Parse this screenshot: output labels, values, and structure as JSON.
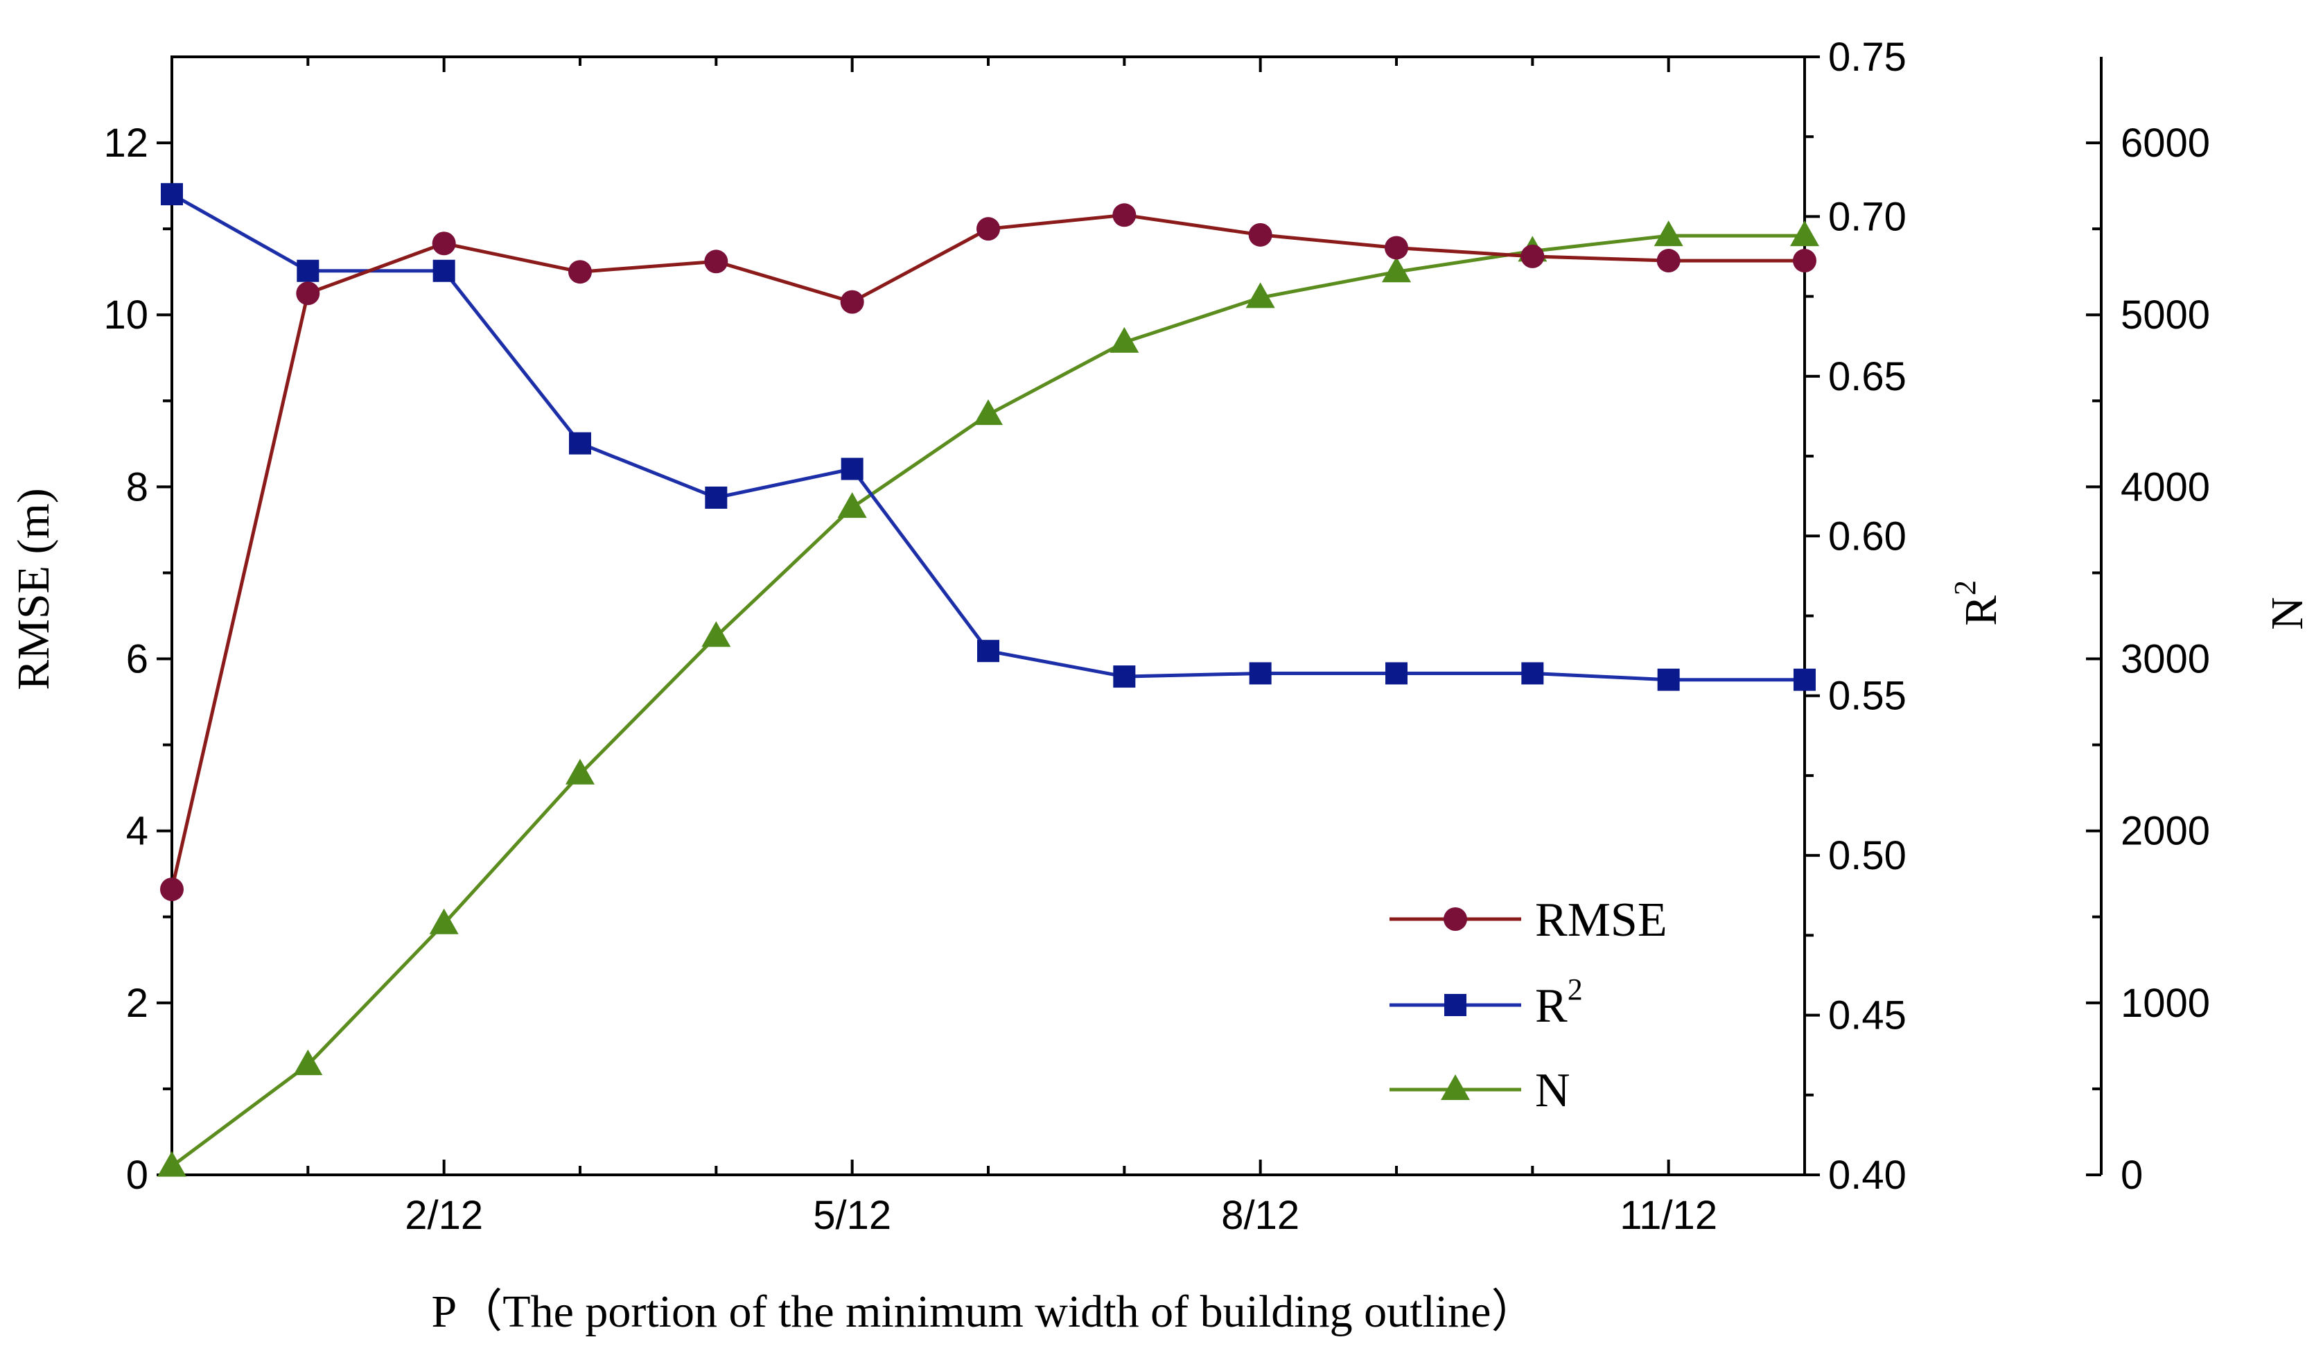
{
  "chart_data": {
    "type": "line",
    "xlabel": "P（The portion of the minimum width of building outline）",
    "x": [
      1,
      2,
      3,
      4,
      5,
      6,
      7,
      8,
      9,
      10,
      11,
      12,
      13
    ],
    "xlim": [
      1,
      13
    ],
    "x_ticks": [
      {
        "x": 3,
        "label": "2/12"
      },
      {
        "x": 6,
        "label": "5/12"
      },
      {
        "x": 9,
        "label": "8/12"
      },
      {
        "x": 12,
        "label": "11/12"
      }
    ],
    "axes": {
      "left": {
        "label": "RMSE (m)",
        "min": 0,
        "max": 13,
        "ticks": [
          0,
          2,
          4,
          6,
          8,
          10,
          12
        ],
        "tick_labels": [
          "0",
          "2",
          "4",
          "6",
          "8",
          "10",
          "12"
        ]
      },
      "right": {
        "label_base": "R",
        "label_sup": "2",
        "min": 0.4,
        "max": 0.75,
        "ticks": [
          0.4,
          0.45,
          0.5,
          0.55,
          0.6,
          0.65,
          0.7,
          0.75
        ],
        "tick_labels": [
          "0.40",
          "0.45",
          "0.50",
          "0.55",
          "0.60",
          "0.65",
          "0.70",
          "0.75"
        ]
      },
      "far_right": {
        "label": "N",
        "min": 0,
        "max": 6500,
        "ticks": [
          0,
          1000,
          2000,
          3000,
          4000,
          5000,
          6000
        ],
        "tick_labels": [
          "0",
          "1000",
          "2000",
          "3000",
          "4000",
          "5000",
          "6000"
        ]
      }
    },
    "series": [
      {
        "name": "RMSE",
        "axis": "left",
        "color": "#8b1a1a",
        "marker_color": "#7a0f38",
        "marker": "circle",
        "values": [
          3.32,
          10.25,
          10.83,
          10.5,
          10.62,
          10.15,
          11.0,
          11.16,
          10.93,
          10.78,
          10.68,
          10.63,
          10.63
        ]
      },
      {
        "name": "R2",
        "label_base": "R",
        "label_sup": "2",
        "axis": "right",
        "color": "#1c2ea8",
        "marker_color": "#0a1a8c",
        "marker": "square",
        "values": [
          0.707,
          0.683,
          0.683,
          0.629,
          0.612,
          0.621,
          0.564,
          0.556,
          0.557,
          0.557,
          0.557,
          0.555,
          0.555
        ]
      },
      {
        "name": "N",
        "axis": "far_right",
        "color": "#5b8c1e",
        "marker_color": "#4f8a1a",
        "marker": "triangle",
        "values": [
          50,
          640,
          1460,
          2330,
          3130,
          3880,
          4420,
          4840,
          5100,
          5250,
          5370,
          5460,
          5460
        ]
      }
    ],
    "legend": {
      "position": "bottom-right"
    }
  }
}
